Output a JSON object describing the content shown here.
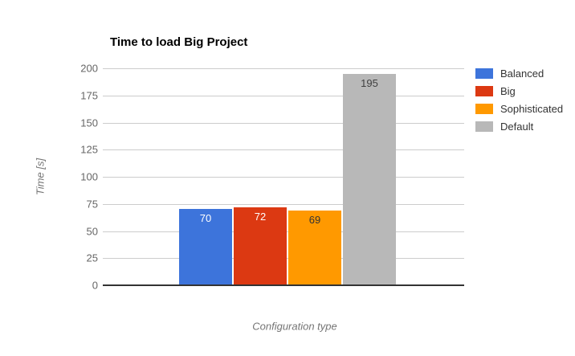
{
  "chart_data": {
    "type": "bar",
    "title": "Time to load Big Project",
    "xlabel": "Configuration type",
    "ylabel": "Time [s]",
    "ylim": [
      0,
      200
    ],
    "yticks": [
      0,
      25,
      50,
      75,
      100,
      125,
      150,
      175,
      200
    ],
    "grid": true,
    "legend_position": "right",
    "categories": [
      "Balanced",
      "Big",
      "Sophisticated",
      "Default"
    ],
    "values": [
      70,
      72,
      69,
      195
    ],
    "colors": [
      "#3d74db",
      "#dc3912",
      "#ff9900",
      "#b8b8b8"
    ],
    "value_label_colors": [
      "#ffffff",
      "#ffffff",
      "#333333",
      "#404040"
    ],
    "legend": [
      {
        "label": "Balanced",
        "color": "#3d74db"
      },
      {
        "label": "Big",
        "color": "#dc3912"
      },
      {
        "label": "Sophisticated",
        "color": "#ff9900"
      },
      {
        "label": "Default",
        "color": "#b8b8b8"
      }
    ]
  }
}
